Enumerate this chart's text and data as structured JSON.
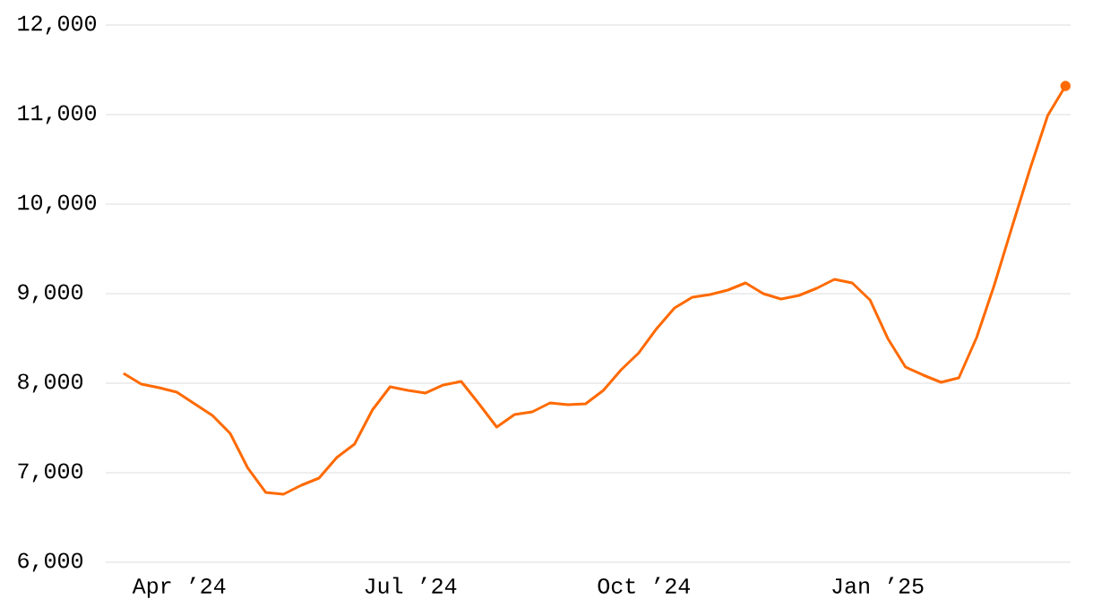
{
  "chart_data": {
    "type": "line",
    "x": [
      "2024-03-10",
      "2024-03-17",
      "2024-03-24",
      "2024-03-31",
      "2024-04-07",
      "2024-04-14",
      "2024-04-21",
      "2024-04-28",
      "2024-05-05",
      "2024-05-12",
      "2024-05-19",
      "2024-05-26",
      "2024-06-02",
      "2024-06-09",
      "2024-06-16",
      "2024-06-23",
      "2024-06-30",
      "2024-07-07",
      "2024-07-14",
      "2024-07-21",
      "2024-07-28",
      "2024-08-04",
      "2024-08-11",
      "2024-08-18",
      "2024-08-25",
      "2024-09-01",
      "2024-09-08",
      "2024-09-15",
      "2024-09-22",
      "2024-09-29",
      "2024-10-06",
      "2024-10-13",
      "2024-10-20",
      "2024-10-27",
      "2024-11-03",
      "2024-11-10",
      "2024-11-17",
      "2024-11-24",
      "2024-12-01",
      "2024-12-08",
      "2024-12-15",
      "2024-12-22",
      "2024-12-29",
      "2025-01-05",
      "2025-01-12",
      "2025-01-19",
      "2025-01-26",
      "2025-02-02",
      "2025-02-09",
      "2025-02-16",
      "2025-02-23",
      "2025-03-02",
      "2025-03-09",
      "2025-03-16"
    ],
    "series": [
      {
        "color": "#ff6a00",
        "values": [
          8110,
          7990,
          7950,
          7900,
          7770,
          7640,
          7440,
          7050,
          6780,
          6760,
          6860,
          6940,
          7170,
          7320,
          7700,
          7960,
          7920,
          7890,
          7980,
          8020,
          7770,
          7510,
          7650,
          7680,
          7780,
          7760,
          7770,
          7920,
          8150,
          8340,
          8610,
          8840,
          8960,
          8990,
          9040,
          9120,
          9000,
          8940,
          8980,
          9060,
          9160,
          9120,
          8930,
          8500,
          8180,
          8090,
          8010,
          8060,
          8510,
          9100,
          9750,
          10390,
          10990,
          11320
        ]
      },
      {
        "type": "scatter",
        "color": "#ff6a00",
        "marker": "circle",
        "x": [
          "2025-03-16"
        ],
        "values": [
          11320
        ]
      }
    ],
    "xlim": [
      "2024-03-03",
      "2025-03-18"
    ],
    "xticks": [
      {
        "value": "2024-04-01",
        "label": "Apr ’24"
      },
      {
        "value": "2024-07-01",
        "label": "Jul ’24"
      },
      {
        "value": "2024-10-01",
        "label": "Oct ’24"
      },
      {
        "value": "2025-01-01",
        "label": "Jan ’25"
      }
    ],
    "ylim": [
      6000,
      12000
    ],
    "yticks": [
      {
        "value": 6000,
        "label": "6,000"
      },
      {
        "value": 7000,
        "label": "7,000"
      },
      {
        "value": 8000,
        "label": "8,000"
      },
      {
        "value": 9000,
        "label": "9,000"
      },
      {
        "value": 10000,
        "label": "10,000"
      },
      {
        "value": 11000,
        "label": "11,000"
      },
      {
        "value": 12000,
        "label": "12,000"
      }
    ],
    "grid": "y",
    "line_style": "solid"
  }
}
